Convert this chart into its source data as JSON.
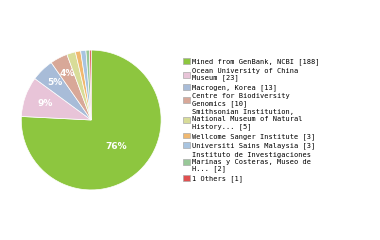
{
  "labels": [
    "Mined from GenBank, NCBI [188]",
    "Ocean University of China\nMuseum [23]",
    "Macrogen, Korea [13]",
    "Centre for Biodiversity\nGenomics [10]",
    "Smithsonian Institution,\nNational Museum of Natural\nHistory... [5]",
    "Wellcome Sanger Institute [3]",
    "Universiti Sains Malaysia [3]",
    "Instituto de Investigaciones\nMarinas y Costeras, Museo de\nH... [2]",
    "1 Others [1]"
  ],
  "values": [
    188,
    23,
    13,
    10,
    5,
    3,
    3,
    2,
    1
  ],
  "colors": [
    "#8dc63f",
    "#e8c4d8",
    "#a8bcd8",
    "#d8a898",
    "#d8dc98",
    "#f0b870",
    "#a8c4e0",
    "#98c898",
    "#e05050"
  ],
  "figsize": [
    3.8,
    2.4
  ],
  "dpi": 100
}
